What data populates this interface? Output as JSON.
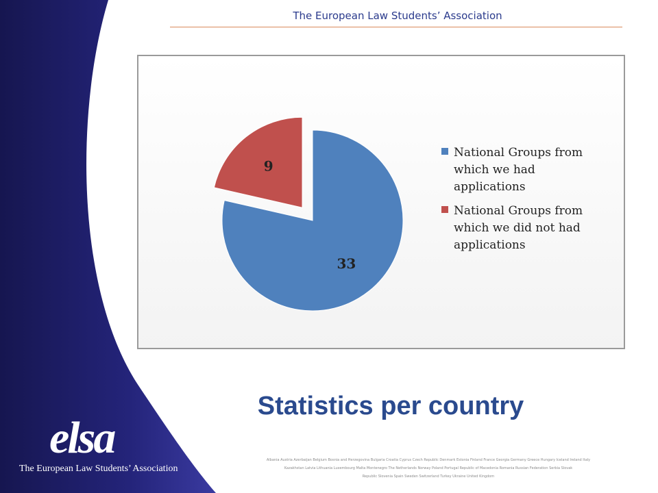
{
  "header": {
    "title": "The European Law Students’ Association"
  },
  "slide": {
    "title": "Statistics per country"
  },
  "logo": {
    "wordmark": "elsa",
    "caption": "The European Law Students’ Association"
  },
  "countries": {
    "lines": [
      "Albania Austria Azerbaijan Belgium Bosnia and Herzegovina Bulgaria Croatia Cyprus Czech Republic Denmark Estonia Finland France Georgia Germany Greece Hungary Iceland Ireland Italy",
      "Kazakhstan Latvia Lithuania Luxembourg Malta Montenegro The Netherlands Norway Poland Portugal Republic of Macedonia Romania Russian Federation Serbia Slovak",
      "Republic Slovenia Spain Sweden Switzerland Turkey Ukraine United Kingdom"
    ]
  },
  "colors": {
    "blue": "#4f81bd",
    "red": "#c0504d",
    "band": "#2a2a78"
  },
  "chart_data": {
    "type": "pie",
    "title": "",
    "slices": [
      {
        "label": "National Groups from which we had applications",
        "value": 33,
        "color": "#4f81bd"
      },
      {
        "label": "National Groups from which we did not had applications",
        "value": 9,
        "color": "#c0504d"
      }
    ],
    "legend_position": "right"
  }
}
